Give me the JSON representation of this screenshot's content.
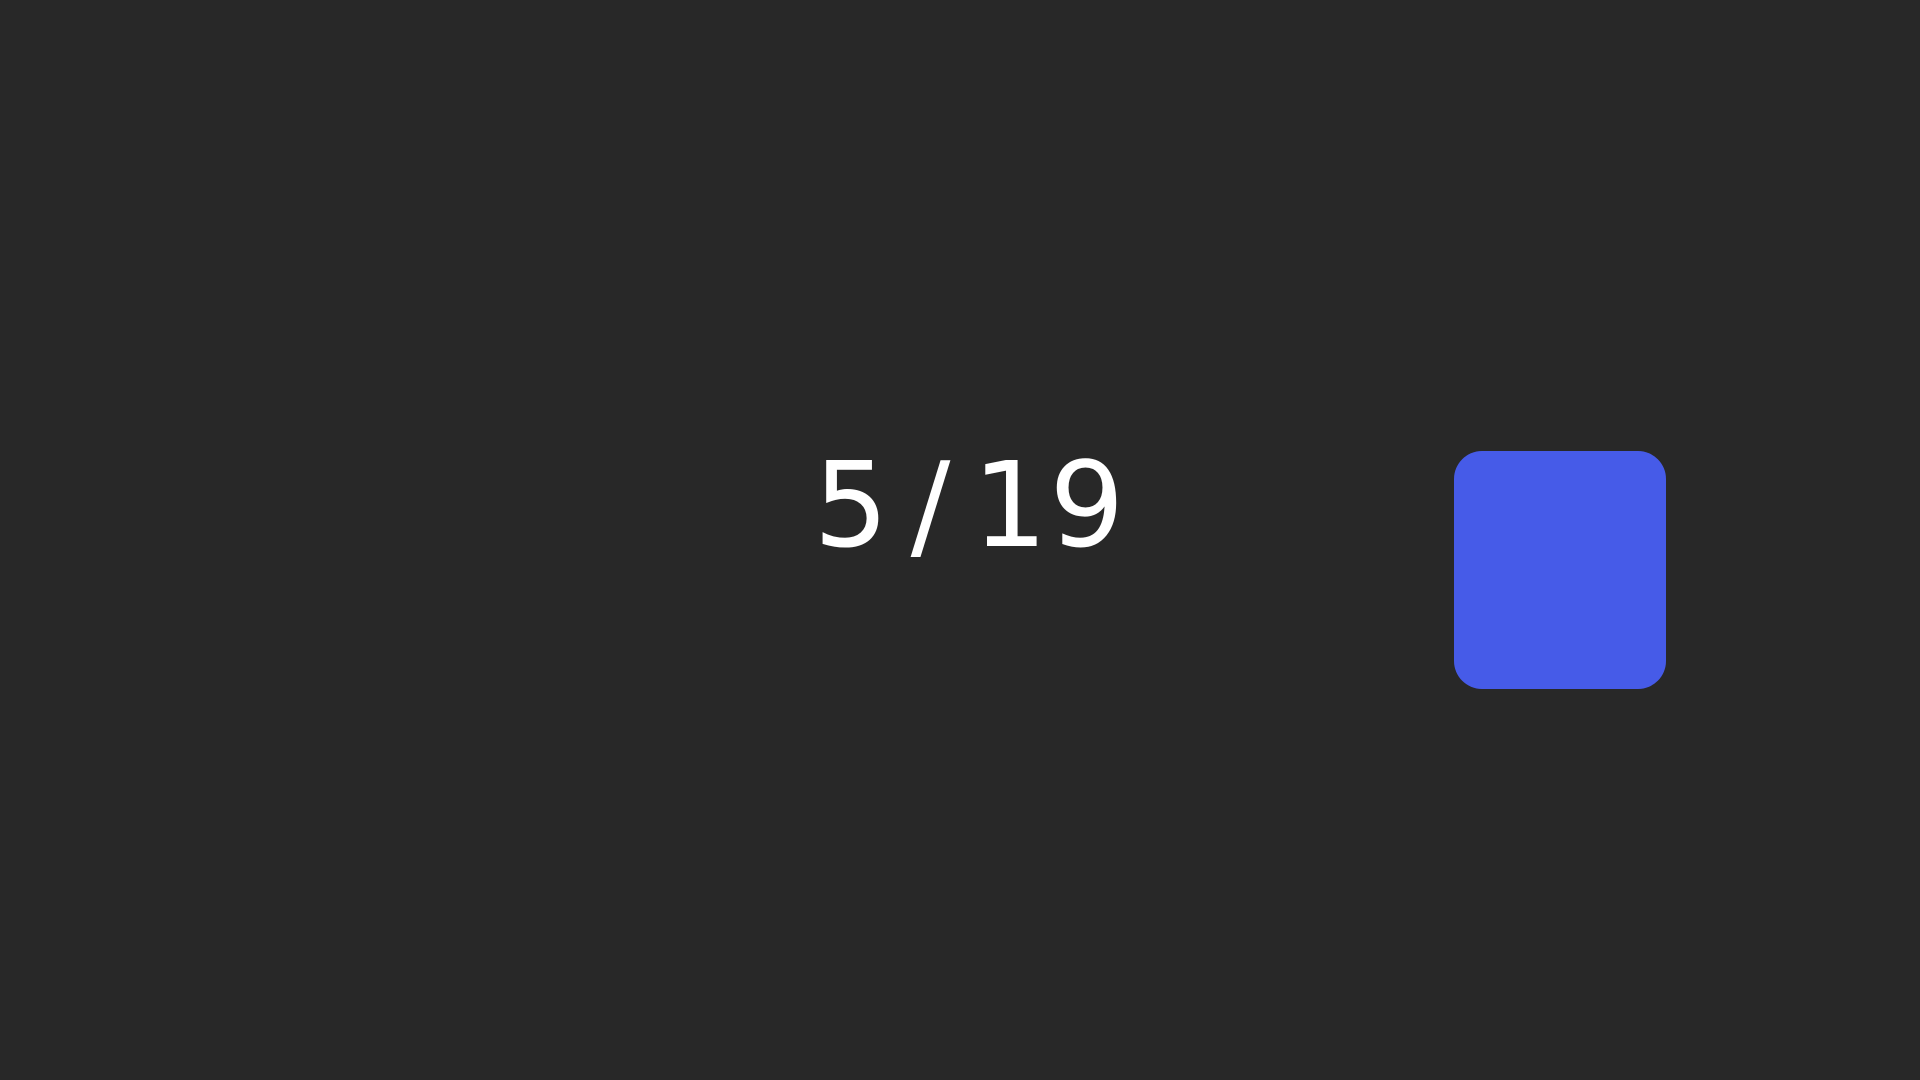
{
  "progress": {
    "current": "5",
    "separator": "/",
    "total": "19"
  },
  "colors": {
    "background": "#282828",
    "text": "#ffffff",
    "square": "#465BE8"
  }
}
